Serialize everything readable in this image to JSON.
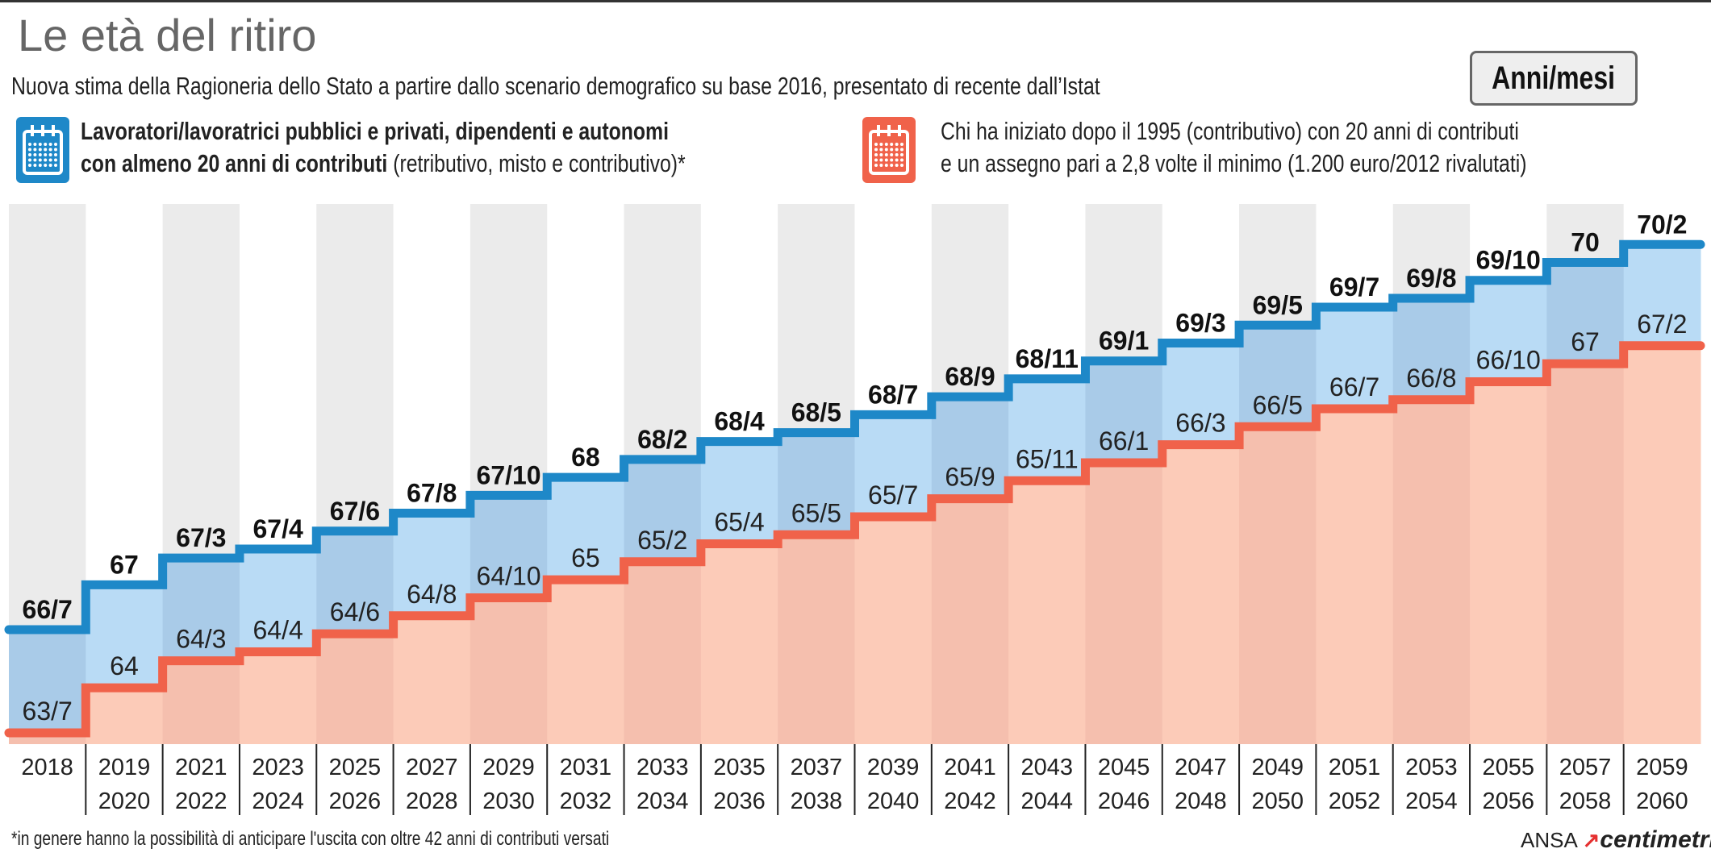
{
  "header": {
    "title": "Le età del ritiro",
    "subtitle": "Nuova stima della Ragioneria dello Stato a partire dallo scenario demografico su base 2016, presentato di recente dall’Istat",
    "unit_label": "Anni/mesi"
  },
  "legend": [
    {
      "icon": "calendar-icon",
      "color": "#1e88c8",
      "line1_bold": "Lavoratori/lavoratrici pubblici e privati, dipendenti e autonomi",
      "line2_bold": "con almeno 20 anni di contributi",
      "line2_regular": " (retributivo, misto e contributivo)*"
    },
    {
      "icon": "calendar-icon",
      "color": "#f0624a",
      "line1": "Chi ha iniziato dopo il 1995 (contributivo) con 20 anni di contributi",
      "line2": "e un assegno pari a 2,8 volte il minimo (1.200 euro/2012 rivalutati)"
    }
  ],
  "chart_data": {
    "type": "line",
    "step": true,
    "unit": "Anni/mesi",
    "categories": [
      [
        "2018",
        ""
      ],
      [
        "2019",
        "2020"
      ],
      [
        "2021",
        "2022"
      ],
      [
        "2023",
        "2024"
      ],
      [
        "2025",
        "2026"
      ],
      [
        "2027",
        "2028"
      ],
      [
        "2029",
        "2030"
      ],
      [
        "2031",
        "2032"
      ],
      [
        "2033",
        "2034"
      ],
      [
        "2035",
        "2036"
      ],
      [
        "2037",
        "2038"
      ],
      [
        "2039",
        "2040"
      ],
      [
        "2041",
        "2042"
      ],
      [
        "2043",
        "2044"
      ],
      [
        "2045",
        "2046"
      ],
      [
        "2047",
        "2048"
      ],
      [
        "2049",
        "2050"
      ],
      [
        "2051",
        "2052"
      ],
      [
        "2053",
        "2054"
      ],
      [
        "2055",
        "2056"
      ],
      [
        "2057",
        "2058"
      ],
      [
        "2059",
        "2060"
      ]
    ],
    "series": [
      {
        "color": "#1e88c8",
        "fill": "#b9dbf5",
        "values": [
          "66/7",
          "67",
          "67/3",
          "67/4",
          "67/6",
          "67/8",
          "67/10",
          "68",
          "68/2",
          "68/4",
          "68/5",
          "68/7",
          "68/9",
          "68/11",
          "69/1",
          "69/3",
          "69/5",
          "69/7",
          "69/8",
          "69/10",
          "70",
          "70/2"
        ]
      },
      {
        "color": "#f0624a",
        "fill": "#fccbb8",
        "values": [
          "63/7",
          "64",
          "64/3",
          "64/4",
          "64/6",
          "64/8",
          "64/10",
          "65",
          "65/2",
          "65/4",
          "65/5",
          "65/7",
          "65/9",
          "65/11",
          "66/1",
          "66/3",
          "66/5",
          "66/7",
          "66/8",
          "66/10",
          "67",
          "67/2"
        ]
      }
    ],
    "grid": "alternating column bands",
    "legend_position": "top"
  },
  "footer": {
    "footnote": "*in genere hanno la possibilità di anticipare l'uscita con oltre 42 anni di contributi versati",
    "logo_ansa": "ANSA",
    "logo_centimetri": "centimetri"
  }
}
